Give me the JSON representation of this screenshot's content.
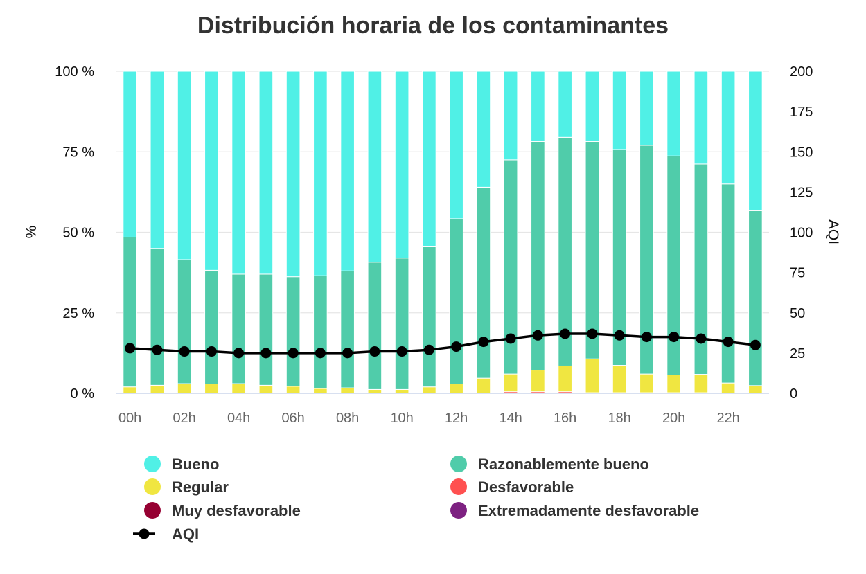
{
  "chart_data": {
    "type": "bar",
    "stacked": true,
    "title": "Distribución horaria de los contaminantes",
    "ylabel": "%",
    "y2label": "AQI",
    "ylim": [
      0,
      100
    ],
    "y2lim": [
      0,
      200
    ],
    "yticks": [
      "0 %",
      "25 %",
      "50 %",
      "75 %",
      "100 %"
    ],
    "y2ticks": [
      "0",
      "25",
      "50",
      "75",
      "100",
      "125",
      "150",
      "175",
      "200"
    ],
    "xtick_labels": [
      "00h",
      "02h",
      "04h",
      "06h",
      "08h",
      "10h",
      "12h",
      "14h",
      "16h",
      "18h",
      "20h",
      "22h"
    ],
    "grid": true,
    "legend_position": "bottom",
    "categories": [
      "00h",
      "01h",
      "02h",
      "03h",
      "04h",
      "05h",
      "06h",
      "07h",
      "08h",
      "09h",
      "10h",
      "11h",
      "12h",
      "13h",
      "14h",
      "15h",
      "16h",
      "17h",
      "18h",
      "19h",
      "20h",
      "21h",
      "22h",
      "23h"
    ],
    "series": [
      {
        "name": "Bueno",
        "color": "#50F0E6",
        "kind": "bar",
        "values": [
          51.5,
          55,
          58.5,
          61.8,
          63,
          63,
          63.8,
          63.5,
          62,
          59.3,
          58,
          54.5,
          45.8,
          36,
          27.5,
          21.8,
          20.5,
          21.8,
          24.3,
          23,
          26.3,
          28.8,
          35,
          43.3
        ]
      },
      {
        "name": "Razonablemente bueno",
        "color": "#50CCAA",
        "kind": "bar",
        "values": [
          46.5,
          42.5,
          38.5,
          35.3,
          34,
          34.5,
          34,
          35,
          36.3,
          39.5,
          40.8,
          43.5,
          51.3,
          59.3,
          66.5,
          71,
          71,
          67.5,
          67,
          71,
          68,
          65.3,
          61.8,
          54.3
        ]
      },
      {
        "name": "Regular",
        "color": "#F0E641",
        "kind": "bar",
        "values": [
          2,
          2.5,
          3,
          2.9,
          3,
          2.5,
          2.2,
          1.5,
          1.7,
          1.2,
          1.2,
          2,
          2.9,
          4.7,
          5.5,
          6.7,
          8,
          10.5,
          8.5,
          5.8,
          5.5,
          5.7,
          3.2,
          2.4
        ]
      },
      {
        "name": "Desfavorable",
        "color": "#FF5050",
        "kind": "bar",
        "values": [
          0,
          0,
          0,
          0,
          0,
          0,
          0,
          0,
          0,
          0,
          0,
          0,
          0,
          0,
          0.5,
          0.5,
          0.5,
          0.2,
          0.2,
          0.2,
          0.2,
          0.2,
          0,
          0
        ]
      },
      {
        "name": "Muy desfavorable",
        "color": "#960032",
        "kind": "bar",
        "values": [
          0,
          0,
          0,
          0,
          0,
          0,
          0,
          0,
          0,
          0,
          0,
          0,
          0,
          0,
          0,
          0,
          0,
          0,
          0,
          0,
          0,
          0,
          0,
          0
        ]
      },
      {
        "name": "Extremadamente desfavorable",
        "color": "#7D2181",
        "kind": "bar",
        "values": [
          0,
          0,
          0,
          0,
          0,
          0,
          0,
          0,
          0,
          0,
          0,
          0,
          0,
          0,
          0,
          0,
          0,
          0,
          0,
          0,
          0,
          0,
          0,
          0
        ]
      },
      {
        "name": "AQI",
        "color": "#000000",
        "kind": "line",
        "axis": "right",
        "values": [
          28,
          27,
          26,
          26,
          25,
          25,
          25,
          25,
          25,
          26,
          26,
          27,
          29,
          32,
          34,
          36,
          37,
          37,
          36,
          35,
          35,
          34,
          32,
          30
        ]
      }
    ]
  }
}
